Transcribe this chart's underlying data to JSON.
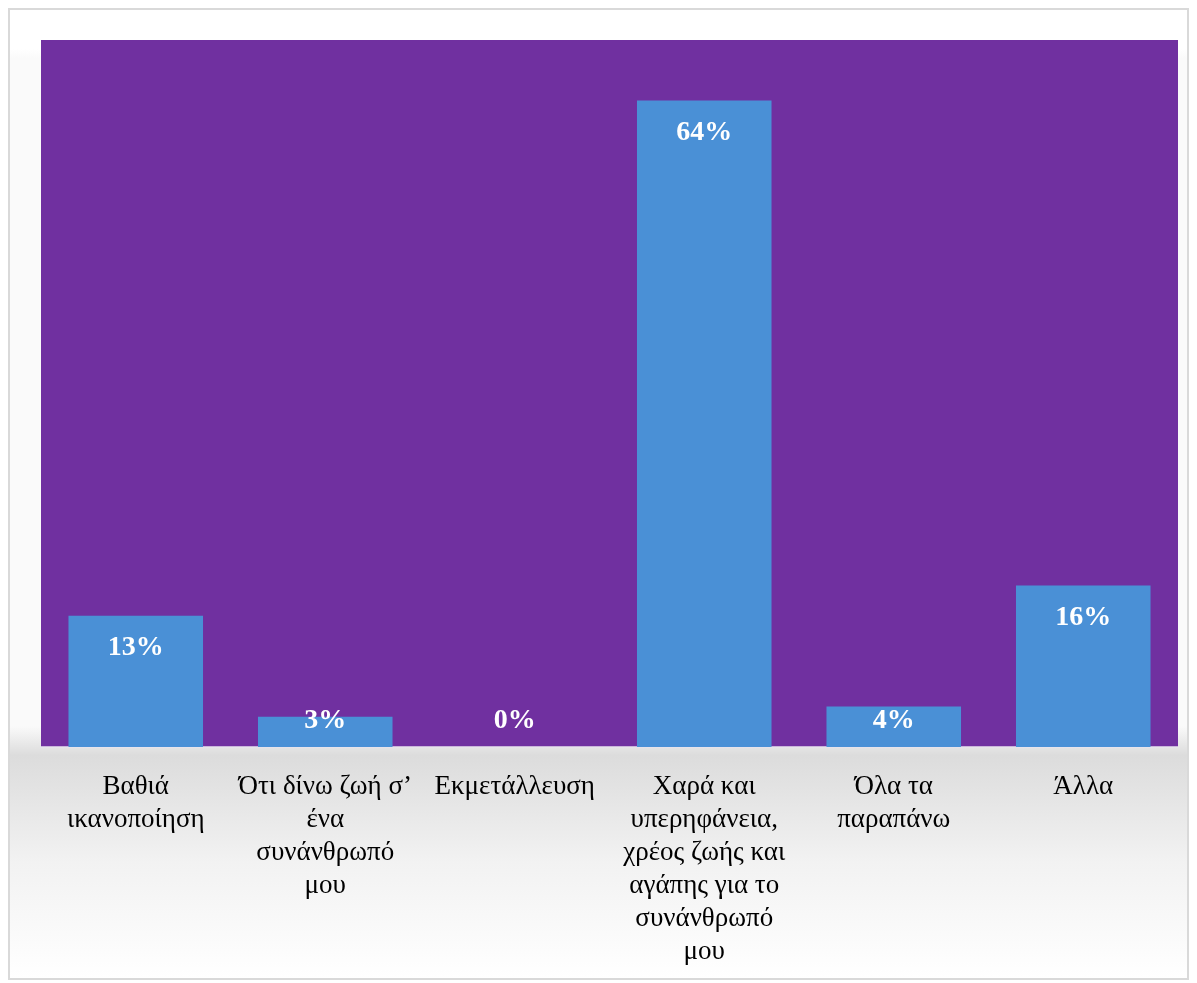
{
  "chart_data": {
    "type": "bar",
    "categories": [
      "Βαθιά ικανοποίηση",
      "Ότι δίνω ζωή σ’ ένα συνάνθρωπό μου",
      "Εκμετάλλευση",
      "Χαρά και υπερηφάνεια, χρέος ζωής και αγάπης για το συνάνθρωπό μου",
      "Όλα τα παραπάνω",
      "Άλλα"
    ],
    "values": [
      13,
      3,
      0,
      64,
      4,
      16
    ],
    "value_labels": [
      "13%",
      "3%",
      "0%",
      "64%",
      "4%",
      "16%"
    ],
    "color": "#4a90d6"
  }
}
